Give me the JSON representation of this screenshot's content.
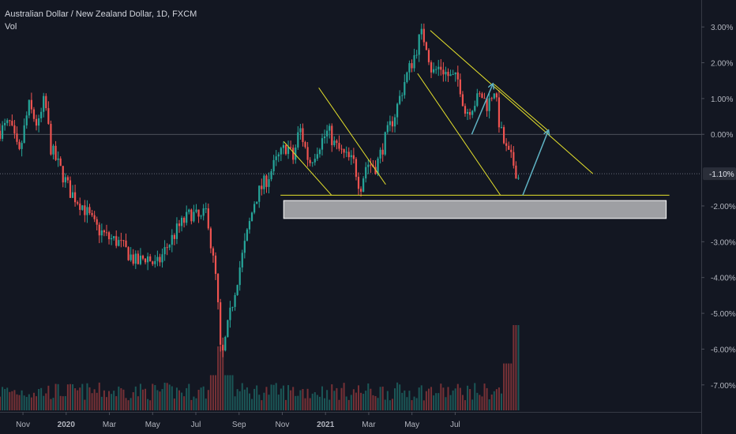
{
  "legend": {
    "title": "Australian Dollar / New Zealand Dollar, 1D, FXCM",
    "volume_label": "Vol"
  },
  "chart_data": {
    "type": "candlestick",
    "unit": "% change",
    "ylim": [
      -7.6,
      3.4
    ],
    "y_ticks": [
      {
        "value": 3,
        "label": "3.00%"
      },
      {
        "value": 2,
        "label": "2.00%"
      },
      {
        "value": 1,
        "label": "1.00%"
      },
      {
        "value": 0,
        "label": "0.00%"
      },
      {
        "value": -1.1,
        "label": "-1.10%"
      },
      {
        "value": -2,
        "label": "-2.00%"
      },
      {
        "value": -3,
        "label": "-3.00%"
      },
      {
        "value": -4,
        "label": "-4.00%"
      },
      {
        "value": -5,
        "label": "-5.00%"
      },
      {
        "value": -6,
        "label": "-6.00%"
      },
      {
        "value": -7,
        "label": "-7.00%"
      }
    ],
    "x_ticks": [
      {
        "label": "Nov",
        "bold": false
      },
      {
        "label": "2020",
        "bold": true
      },
      {
        "label": "Mar",
        "bold": false
      },
      {
        "label": "May",
        "bold": false
      },
      {
        "label": "Jul",
        "bold": false
      },
      {
        "label": "Sep",
        "bold": false
      },
      {
        "label": "Nov",
        "bold": false
      },
      {
        "label": "2021",
        "bold": true
      },
      {
        "label": "Mar",
        "bold": false
      },
      {
        "label": "May",
        "bold": false
      },
      {
        "label": "Jul",
        "bold": false
      }
    ],
    "price_path": [
      [
        0,
        0.1
      ],
      [
        1.5,
        0.3
      ],
      [
        3,
        -0.6
      ],
      [
        4.5,
        0.8
      ],
      [
        6,
        0.2
      ],
      [
        7,
        1.0
      ],
      [
        8,
        -0.4
      ],
      [
        9.5,
        -1.0
      ],
      [
        11,
        -1.6
      ],
      [
        13,
        -2.0
      ],
      [
        15,
        -2.6
      ],
      [
        17,
        -2.9
      ],
      [
        18.5,
        -3.0
      ],
      [
        20,
        -3.3
      ],
      [
        21.5,
        -3.6
      ],
      [
        23,
        -3.4
      ],
      [
        24.5,
        -3.7
      ],
      [
        26,
        -3.2
      ],
      [
        28,
        -2.6
      ],
      [
        30,
        -2.2
      ],
      [
        31.5,
        -2.4
      ],
      [
        32.5,
        -2.1
      ],
      [
        33,
        -3.0
      ],
      [
        34,
        -4.2
      ],
      [
        34.7,
        -6.4
      ],
      [
        35.5,
        -5.6
      ],
      [
        37,
        -4.2
      ],
      [
        38.5,
        -3.0
      ],
      [
        40,
        -1.8
      ],
      [
        42,
        -1.2
      ],
      [
        43.5,
        -0.7
      ],
      [
        45,
        -0.3
      ],
      [
        46,
        -0.7
      ],
      [
        47,
        0.2
      ],
      [
        48.5,
        -0.8
      ],
      [
        50,
        -0.3
      ],
      [
        51.5,
        0.1
      ],
      [
        52.5,
        -0.3
      ],
      [
        54,
        -0.6
      ],
      [
        55.5,
        -0.8
      ],
      [
        56.5,
        -1.5
      ],
      [
        57.5,
        -0.8
      ],
      [
        59,
        -0.9
      ],
      [
        60.5,
        -0.1
      ],
      [
        62,
        0.6
      ],
      [
        63.5,
        1.5
      ],
      [
        65,
        2.2
      ],
      [
        66,
        2.8
      ],
      [
        66.8,
        2.6
      ],
      [
        67.8,
        1.7
      ],
      [
        69,
        1.9
      ],
      [
        70.5,
        1.6
      ],
      [
        72,
        1.5
      ],
      [
        73,
        0.6
      ],
      [
        74.5,
        0.9
      ],
      [
        75.5,
        1.1
      ],
      [
        76.5,
        0.8
      ],
      [
        77.5,
        1.3
      ],
      [
        78.5,
        0.1
      ],
      [
        79.5,
        -0.5
      ],
      [
        80.5,
        -0.8
      ],
      [
        81.5,
        -1.3
      ]
    ],
    "volume": {
      "typical": 0.14,
      "spikes": [
        {
          "x": 34.7,
          "value": 0.45
        },
        {
          "x": 81,
          "value": 0.6
        }
      ]
    },
    "horizontal_lines": [
      {
        "value": 0,
        "style": "solid"
      },
      {
        "value": -1.1,
        "style": "dotted"
      }
    ],
    "last_value_label": "-1.10%",
    "drawings": {
      "trendlines": [
        {
          "from": [
            44.5,
            -0.2
          ],
          "to": [
            52,
            -1.7
          ]
        },
        {
          "from": [
            50,
            1.3
          ],
          "to": [
            60.5,
            -1.4
          ]
        },
        {
          "from": [
            65.5,
            1.7
          ],
          "to": [
            78.5,
            -1.7
          ]
        },
        {
          "from": [
            67.5,
            2.9
          ],
          "to": [
            93,
            -1.1
          ]
        },
        {
          "from": [
            77.5,
            1.4
          ],
          "to": [
            86,
            0.1
          ]
        },
        {
          "from": [
            44,
            -1.7
          ],
          "to": [
            105,
            -1.7
          ]
        }
      ],
      "arrows": [
        {
          "points": [
            [
              74,
              0
            ],
            [
              77.3,
              1.4
            ]
          ]
        },
        {
          "points": [
            [
              82,
              -1.7
            ],
            [
              86,
              0.1
            ]
          ]
        }
      ],
      "rectangles": [
        {
          "x1": 44.5,
          "x2": 104.5,
          "y1": -1.85,
          "y2": -2.35
        }
      ]
    }
  }
}
